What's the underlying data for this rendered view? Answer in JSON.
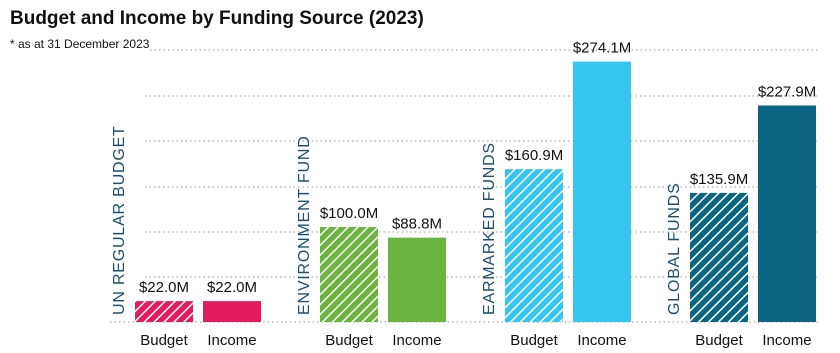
{
  "chart_data": {
    "type": "bar",
    "title": "Budget and Income by Funding Source (2023)",
    "subtitle": "* as at 31 December 2023",
    "categories": [
      "Budget",
      "Income"
    ],
    "groups": [
      {
        "name": "UN REGULAR BUDGET",
        "color": "#e31c5f",
        "values": [
          22.0,
          22.0
        ],
        "value_labels": [
          "$22.0M",
          "$22.0M"
        ]
      },
      {
        "name": "ENVIRONMENT FUND",
        "color": "#6cb33f",
        "values": [
          100.0,
          88.8
        ],
        "value_labels": [
          "$100.0M",
          "$88.8M"
        ]
      },
      {
        "name": "EARMARKED FUNDS",
        "color": "#36c5f0",
        "values": [
          160.9,
          274.1
        ],
        "value_labels": [
          "$160.9M",
          "$274.1M"
        ]
      },
      {
        "name": "GLOBAL FUNDS",
        "color": "#0b6582",
        "values": [
          135.9,
          227.9
        ],
        "value_labels": [
          "$135.9M",
          "$227.9M"
        ]
      }
    ],
    "ylim": [
      0,
      300
    ]
  }
}
